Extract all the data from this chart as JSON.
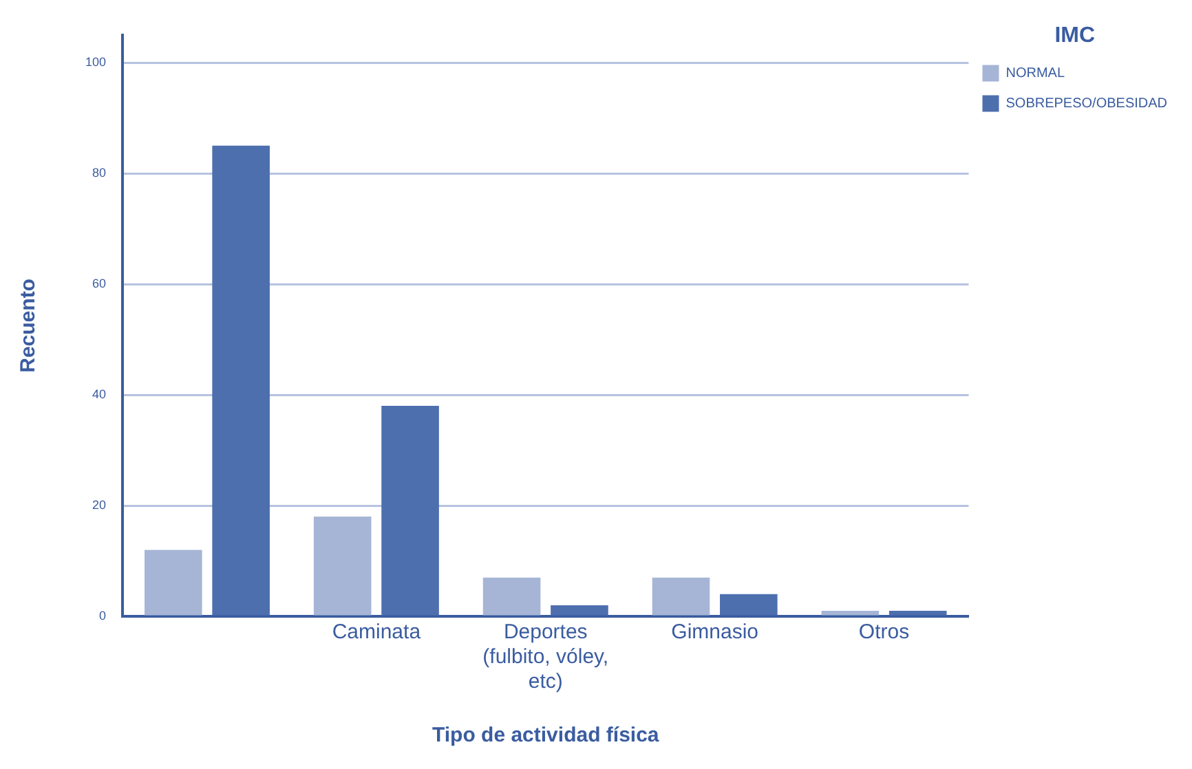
{
  "chart_data": {
    "type": "bar",
    "xlabel": "Tipo de actividad física",
    "ylabel": "Recuento",
    "legend_title": "IMC",
    "categories": [
      null,
      "Caminata",
      "Deportes (fulbito, vóley, etc)",
      "Gimnasio",
      "Otros"
    ],
    "series": [
      {
        "name": "NORMAL",
        "color": "#a6b5d6",
        "values": [
          12,
          18,
          7,
          7,
          1
        ]
      },
      {
        "name": "SOBREPESO/OBESIDAD",
        "color": "#4d6fae",
        "values": [
          85,
          38,
          2,
          4,
          1
        ]
      }
    ],
    "ylim": [
      0,
      105
    ],
    "yticks": [
      0,
      20,
      40,
      60,
      80,
      100
    ],
    "grid": "y",
    "legend": "top right"
  }
}
